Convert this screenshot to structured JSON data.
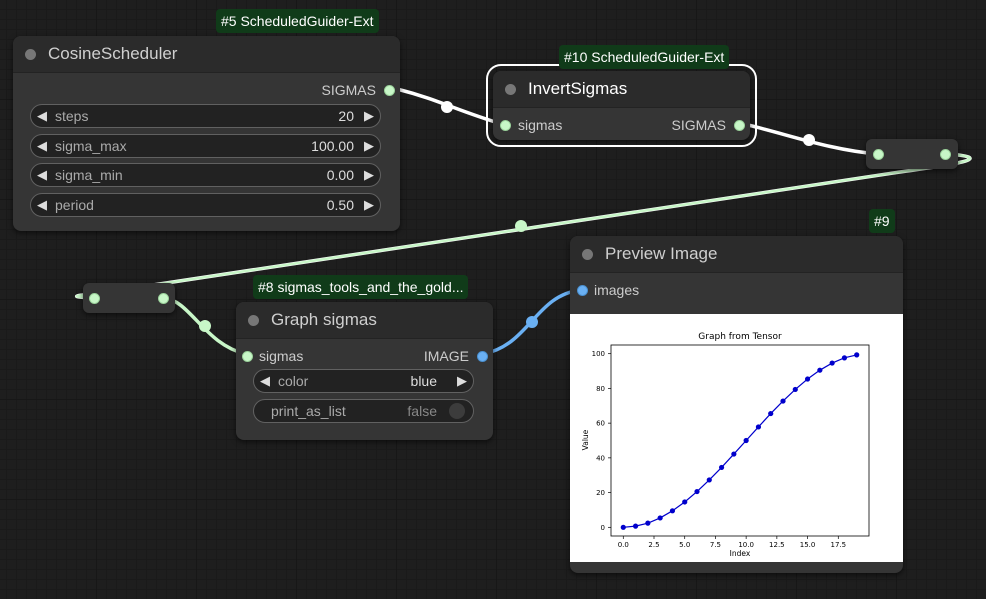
{
  "colors": {
    "link_sigmas": "#c8f7c8",
    "link_image": "#6ab0f3",
    "badge_bg": "#103b19"
  },
  "nodes": {
    "cosine_scheduler": {
      "badge": "#5 ScheduledGuider-Ext",
      "title": "CosineScheduler",
      "output": "SIGMAS",
      "widgets": [
        {
          "name": "steps",
          "value": "20"
        },
        {
          "name": "sigma_max",
          "value": "100.00"
        },
        {
          "name": "sigma_min",
          "value": "0.00"
        },
        {
          "name": "period",
          "value": "0.50"
        }
      ]
    },
    "invert_sigmas": {
      "badge": "#10 ScheduledGuider-Ext",
      "title": "InvertSigmas",
      "input": "sigmas",
      "output": "SIGMAS"
    },
    "graph_sigmas": {
      "badge": "#8 sigmas_tools_and_the_gold...",
      "title": "Graph sigmas",
      "input": "sigmas",
      "output": "IMAGE",
      "widgets": [
        {
          "name": "color",
          "value": "blue"
        },
        {
          "name": "print_as_list",
          "value": "false"
        }
      ]
    },
    "preview_image": {
      "badge": "#9",
      "title": "Preview Image",
      "input": "images"
    }
  },
  "chart_data": {
    "type": "line",
    "title": "Graph from Tensor",
    "xlabel": "Index",
    "ylabel": "Value",
    "x": [
      0,
      1,
      2,
      3,
      4,
      5,
      6,
      7,
      8,
      9,
      10,
      11,
      12,
      13,
      14,
      15,
      16,
      17,
      18,
      19
    ],
    "values": [
      0,
      0.7,
      2.4,
      5.4,
      9.5,
      14.6,
      20.6,
      27.3,
      34.5,
      42.2,
      50,
      57.8,
      65.5,
      72.7,
      79.4,
      85.4,
      90.5,
      94.6,
      97.6,
      99.3
    ],
    "xlim": [
      -1,
      20
    ],
    "ylim": [
      -5,
      105
    ],
    "xticks": [
      "0.0",
      "2.5",
      "5.0",
      "7.5",
      "10.0",
      "12.5",
      "15.0",
      "17.5"
    ],
    "yticks": [
      "0",
      "20",
      "40",
      "60",
      "80",
      "100"
    ],
    "color": "#0000cc",
    "grid": false
  }
}
